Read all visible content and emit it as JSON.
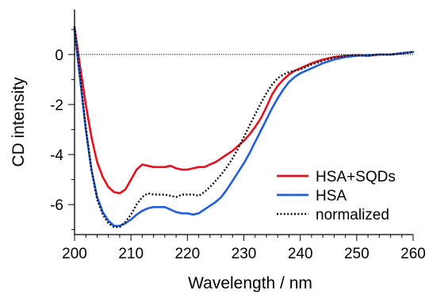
{
  "chart_data": {
    "type": "line",
    "title": "",
    "xlabel": "Wavelength / nm",
    "ylabel": "CD intensity",
    "xlim": [
      200,
      260
    ],
    "ylim": [
      -7.2,
      1.8
    ],
    "xticks": [
      200,
      210,
      220,
      230,
      240,
      250,
      260
    ],
    "yticks": [
      0,
      -2,
      -4,
      -6
    ],
    "zero_line": true,
    "grid": false,
    "legend_position": "bottom-right",
    "series": [
      {
        "name": "HSA+SQDs",
        "color": "#e8101c",
        "style": "solid",
        "x": [
          200,
          201,
          202,
          203,
          204,
          205,
          206,
          207,
          208,
          209,
          210,
          211,
          212,
          213,
          214,
          215,
          216,
          217,
          218,
          219,
          220,
          221,
          222,
          223,
          224,
          225,
          226,
          227,
          228,
          229,
          230,
          231,
          232,
          233,
          234,
          235,
          236,
          237,
          238,
          239,
          240,
          242,
          244,
          246,
          248,
          250,
          252,
          254,
          256,
          258,
          260
        ],
        "y": [
          1.1,
          -0.5,
          -2.0,
          -3.3,
          -4.3,
          -4.9,
          -5.3,
          -5.5,
          -5.55,
          -5.4,
          -5.0,
          -4.6,
          -4.4,
          -4.45,
          -4.5,
          -4.5,
          -4.5,
          -4.45,
          -4.55,
          -4.6,
          -4.6,
          -4.55,
          -4.5,
          -4.5,
          -4.4,
          -4.3,
          -4.15,
          -4.0,
          -3.85,
          -3.65,
          -3.45,
          -3.2,
          -2.9,
          -2.55,
          -2.1,
          -1.6,
          -1.25,
          -1.0,
          -0.8,
          -0.65,
          -0.55,
          -0.35,
          -0.2,
          -0.1,
          -0.05,
          -0.03,
          -0.05,
          0.0,
          0.0,
          0.05,
          0.1
        ]
      },
      {
        "name": "HSA",
        "color": "#1f5fde",
        "style": "solid",
        "x": [
          200,
          201,
          202,
          203,
          204,
          205,
          206,
          207,
          208,
          209,
          210,
          211,
          212,
          213,
          214,
          215,
          216,
          217,
          218,
          219,
          220,
          221,
          222,
          223,
          224,
          225,
          226,
          227,
          228,
          229,
          230,
          231,
          232,
          233,
          234,
          235,
          236,
          237,
          238,
          239,
          240,
          242,
          244,
          246,
          248,
          250,
          252,
          254,
          256,
          258,
          260
        ],
        "y": [
          1.0,
          -1.0,
          -3.0,
          -4.6,
          -5.7,
          -6.3,
          -6.65,
          -6.85,
          -6.85,
          -6.75,
          -6.6,
          -6.4,
          -6.25,
          -6.15,
          -6.1,
          -6.1,
          -6.1,
          -6.2,
          -6.3,
          -6.35,
          -6.35,
          -6.4,
          -6.35,
          -6.2,
          -6.05,
          -5.9,
          -5.7,
          -5.4,
          -5.05,
          -4.7,
          -4.35,
          -3.95,
          -3.5,
          -3.05,
          -2.6,
          -2.15,
          -1.75,
          -1.4,
          -1.1,
          -0.9,
          -0.75,
          -0.55,
          -0.35,
          -0.2,
          -0.1,
          -0.05,
          -0.03,
          0.0,
          0.0,
          0.05,
          0.1
        ]
      },
      {
        "name": "normalized",
        "color": "#111111",
        "style": "dotted",
        "x": [
          200,
          201,
          202,
          203,
          204,
          205,
          206,
          207,
          208,
          209,
          210,
          211,
          212,
          213,
          214,
          215,
          216,
          217,
          218,
          219,
          220,
          221,
          222,
          223,
          224,
          225,
          226,
          227,
          228,
          229,
          230,
          231,
          232,
          233,
          234,
          235,
          236,
          237,
          238,
          239,
          240,
          242,
          244,
          246,
          248,
          250,
          252,
          254,
          256,
          258,
          260
        ],
        "y": [
          1.1,
          -0.9,
          -2.9,
          -4.6,
          -5.8,
          -6.4,
          -6.75,
          -6.9,
          -6.9,
          -6.7,
          -6.4,
          -6.0,
          -5.7,
          -5.55,
          -5.6,
          -5.6,
          -5.6,
          -5.65,
          -5.7,
          -5.6,
          -5.6,
          -5.6,
          -5.65,
          -5.5,
          -5.3,
          -5.05,
          -4.8,
          -4.5,
          -4.15,
          -3.75,
          -3.3,
          -2.85,
          -2.4,
          -1.95,
          -1.55,
          -1.2,
          -0.95,
          -0.8,
          -0.7,
          -0.65,
          -0.6,
          -0.4,
          -0.25,
          -0.12,
          -0.05,
          -0.03,
          -0.05,
          0.0,
          0.0,
          0.05,
          0.1
        ]
      }
    ]
  }
}
